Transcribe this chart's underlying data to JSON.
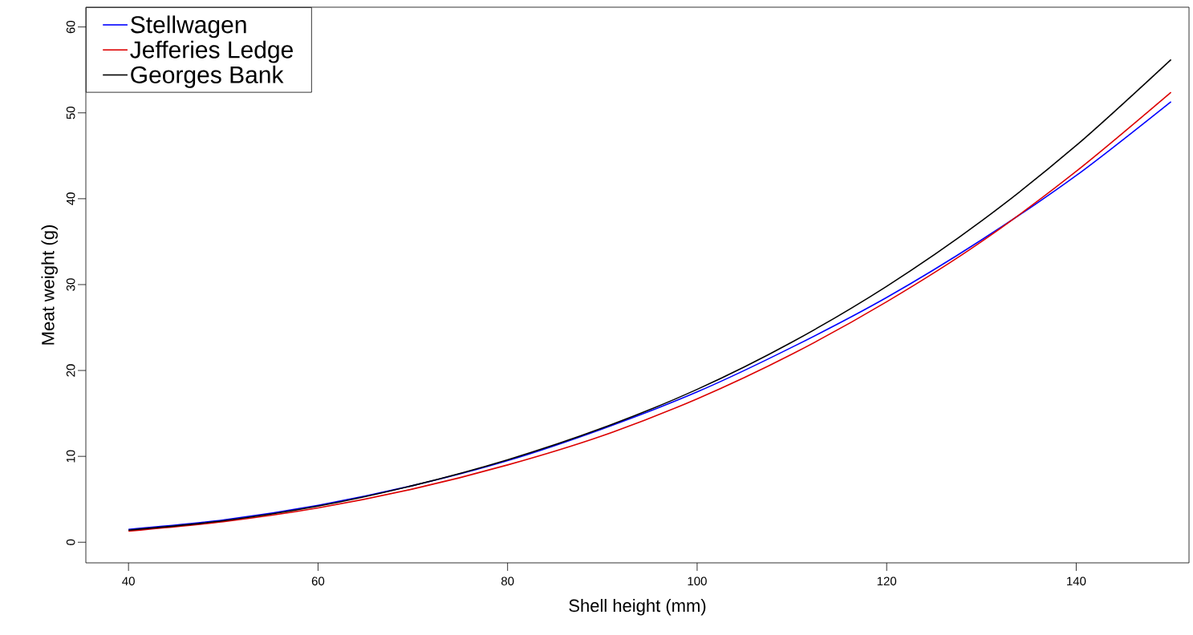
{
  "chart_data": {
    "type": "line",
    "xlabel": "Shell height (mm)",
    "ylabel": "Meat weight (g)",
    "x": [
      40,
      50,
      60,
      70,
      80,
      90,
      100,
      110,
      120,
      130,
      140,
      150
    ],
    "series": [
      {
        "name": "Stellwagen",
        "color": "#0000ff",
        "values": [
          1.5,
          2.6,
          4.3,
          6.6,
          9.5,
          13.2,
          17.5,
          22.7,
          28.5,
          35.2,
          42.7,
          51.3
        ]
      },
      {
        "name": "Jefferies Ledge",
        "color": "#dd0000",
        "values": [
          1.3,
          2.4,
          4.0,
          6.2,
          9.0,
          12.4,
          16.7,
          21.9,
          28.0,
          35.0,
          43.2,
          52.4
        ]
      },
      {
        "name": "Georges Bank",
        "color": "#000000",
        "values": [
          1.4,
          2.5,
          4.2,
          6.6,
          9.6,
          13.3,
          17.8,
          23.3,
          29.8,
          37.4,
          46.2,
          56.2
        ]
      }
    ],
    "xlim": [
      35.5,
      151.9
    ],
    "ylim": [
      -2.4,
      62.3
    ],
    "xticks": [
      40,
      60,
      80,
      100,
      120,
      140
    ],
    "yticks": [
      0,
      10,
      20,
      30,
      40,
      50,
      60
    ],
    "legend": "top left",
    "grid": false,
    "marker": "none",
    "line_style": "solid"
  }
}
